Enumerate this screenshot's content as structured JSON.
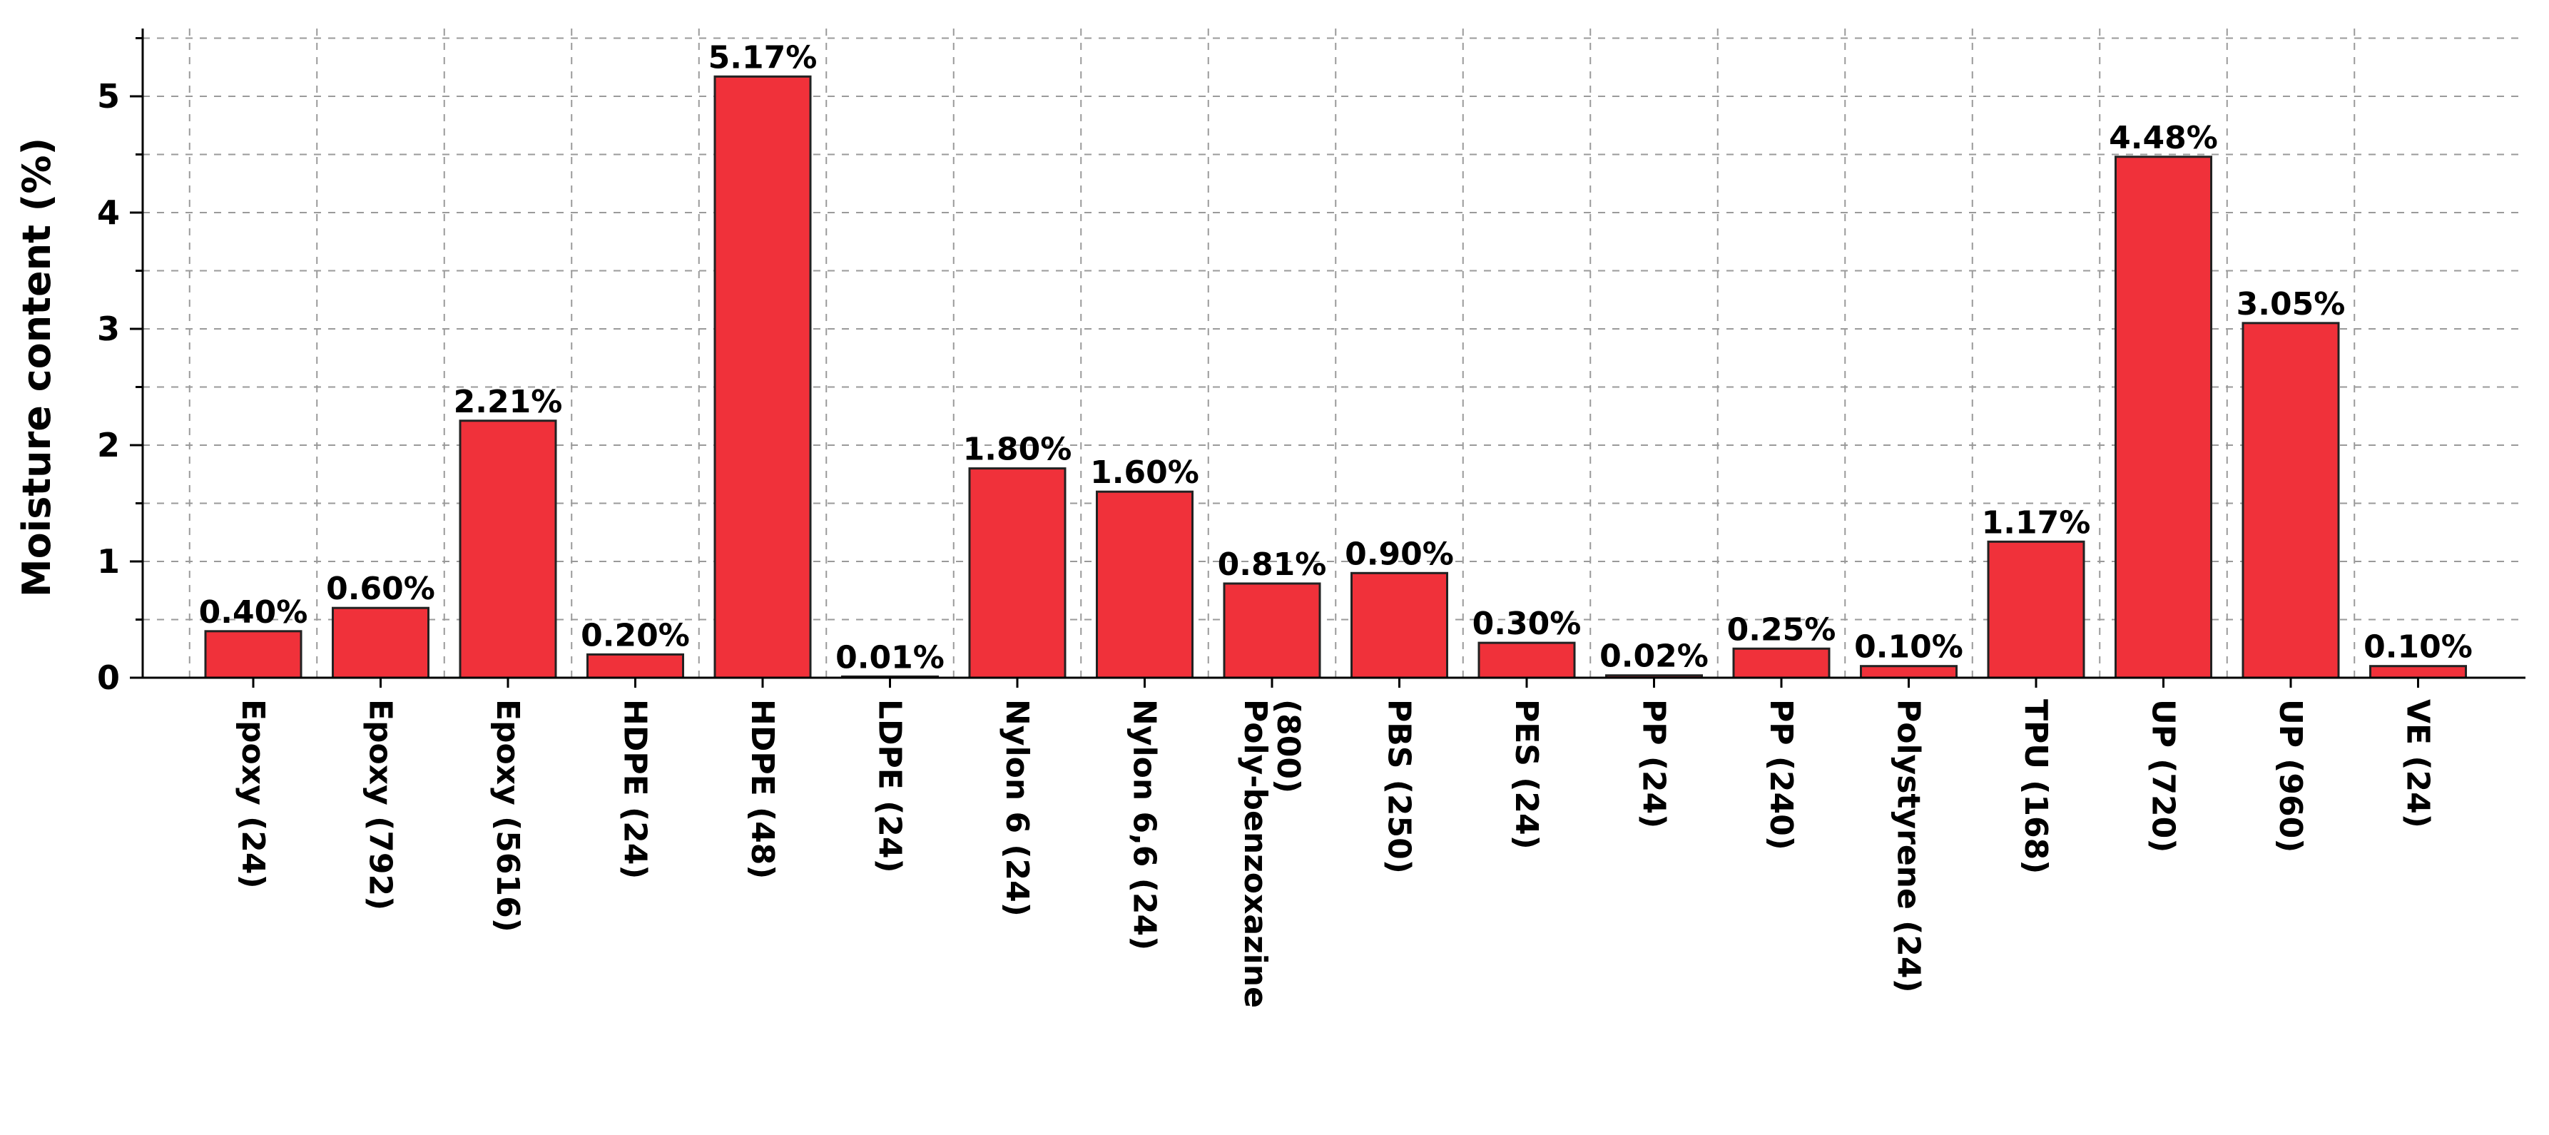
{
  "chart_data": {
    "type": "bar",
    "ylabel": "Moisture content (%)",
    "xlabel": "",
    "ylim": [
      0,
      5.5
    ],
    "yticks": [
      0,
      1,
      2,
      3,
      4,
      5
    ],
    "grid": true,
    "bar_color": "#f0313a",
    "categories": [
      "Epoxy (24)",
      "Epoxy (792)",
      "Epoxy (5616)",
      "HDPE (24)",
      "HDPE (48)",
      "LDPE (24)",
      "Nylon 6 (24)",
      "Nylon 6,6 (24)",
      "Poly-benzoxazine (800)",
      "PBS (250)",
      "PES (24)",
      "PP (24)",
      "PP (240)",
      "Polystyrene (24)",
      "TPU (168)",
      "UP (720)",
      "UP (960)",
      "VE (24)"
    ],
    "category_lines": [
      [
        "Epoxy (24)"
      ],
      [
        "Epoxy (792)"
      ],
      [
        "Epoxy (5616)"
      ],
      [
        "HDPE (24)"
      ],
      [
        "HDPE (48)"
      ],
      [
        "LDPE (24)"
      ],
      [
        "Nylon 6 (24)"
      ],
      [
        "Nylon 6,6 (24)"
      ],
      [
        "Poly-benzoxazine",
        "(800)"
      ],
      [
        "PBS (250)"
      ],
      [
        "PES (24)"
      ],
      [
        "PP (24)"
      ],
      [
        "PP (240)"
      ],
      [
        "Polystyrene (24)"
      ],
      [
        "TPU (168)"
      ],
      [
        "UP (720)"
      ],
      [
        "UP (960)"
      ],
      [
        "VE (24)"
      ]
    ],
    "values": [
      0.4,
      0.6,
      2.21,
      0.2,
      5.17,
      0.01,
      1.8,
      1.6,
      0.81,
      0.9,
      0.3,
      0.02,
      0.25,
      0.1,
      1.17,
      4.48,
      3.05,
      0.1
    ],
    "data_labels": [
      "0.40%",
      "0.60%",
      "2.21%",
      "0.20%",
      "5.17%",
      "0.01%",
      "1.80%",
      "1.60%",
      "0.81%",
      "0.90%",
      "0.30%",
      "0.02%",
      "0.25%",
      "0.10%",
      "1.17%",
      "4.48%",
      "3.05%",
      "0.10%"
    ]
  }
}
